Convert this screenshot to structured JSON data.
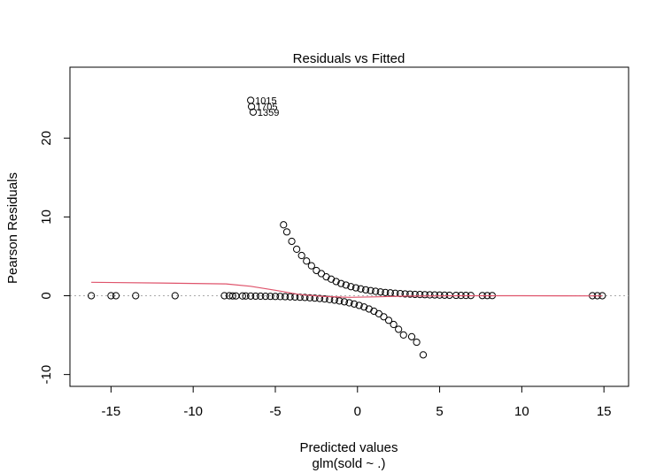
{
  "chart_data": {
    "type": "scatter",
    "title": "Residuals vs Fitted",
    "xlabel": "Predicted values",
    "xlabel_sub": "glm(sold ~ .)",
    "ylabel": "Pearson Residuals",
    "xlim": [
      -17.5,
      16.5
    ],
    "ylim": [
      -11.5,
      29.0
    ],
    "xticks": [
      -15,
      -10,
      -5,
      0,
      5,
      10,
      15
    ],
    "yticks": [
      -10,
      0,
      10,
      20
    ],
    "grid": false,
    "reference_line": {
      "y": 0,
      "style": "dotted",
      "color": "#aaaaaa"
    },
    "colors": {
      "points": "#000000",
      "smoother": "#df536b"
    },
    "labeled_points": [
      {
        "label": "1015",
        "x": -6.5,
        "y": 24.8
      },
      {
        "label": "1705",
        "x": -6.45,
        "y": 24.0
      },
      {
        "label": "1359",
        "x": -6.35,
        "y": 23.3
      }
    ],
    "points": [
      [
        -16.2,
        0
      ],
      [
        -15.0,
        0
      ],
      [
        -14.7,
        0
      ],
      [
        -13.5,
        0
      ],
      [
        -11.1,
        0
      ],
      [
        -8.1,
        0
      ],
      [
        -7.8,
        0
      ],
      [
        -7.6,
        -0.02
      ],
      [
        -7.4,
        -0.02
      ],
      [
        -7.0,
        -0.03
      ],
      [
        -6.8,
        -0.03
      ],
      [
        -6.5,
        -0.04
      ],
      [
        -6.2,
        -0.05
      ],
      [
        -5.9,
        -0.06
      ],
      [
        -5.6,
        -0.07
      ],
      [
        -5.3,
        -0.08
      ],
      [
        -5.0,
        -0.09
      ],
      [
        -4.7,
        -0.1
      ],
      [
        -4.4,
        -0.12
      ],
      [
        -4.1,
        -0.14
      ],
      [
        -3.8,
        -0.16
      ],
      [
        -3.5,
        -0.19
      ],
      [
        -3.2,
        -0.22
      ],
      [
        -2.9,
        -0.26
      ],
      [
        -2.6,
        -0.3
      ],
      [
        -2.3,
        -0.35
      ],
      [
        -2.0,
        -0.41
      ],
      [
        -1.7,
        -0.48
      ],
      [
        -1.4,
        -0.56
      ],
      [
        -1.1,
        -0.66
      ],
      [
        -0.8,
        -0.77
      ],
      [
        -0.5,
        -0.9
      ],
      [
        -0.2,
        -1.05
      ],
      [
        0.1,
        -1.23
      ],
      [
        0.4,
        -1.43
      ],
      [
        0.7,
        -1.68
      ],
      [
        1.0,
        -1.96
      ],
      [
        1.3,
        -2.29
      ],
      [
        1.6,
        -2.67
      ],
      [
        1.9,
        -3.12
      ],
      [
        2.2,
        -3.65
      ],
      [
        2.5,
        -4.26
      ],
      [
        2.8,
        -4.98
      ],
      [
        3.3,
        -5.2
      ],
      [
        3.6,
        -5.9
      ],
      [
        4.0,
        -7.5
      ],
      [
        -4.5,
        9.0
      ],
      [
        -4.3,
        8.1
      ],
      [
        -4.0,
        6.9
      ],
      [
        -3.7,
        5.9
      ],
      [
        -3.4,
        5.1
      ],
      [
        -3.1,
        4.4
      ],
      [
        -2.8,
        3.8
      ],
      [
        -2.5,
        3.2
      ],
      [
        -2.2,
        2.8
      ],
      [
        -1.9,
        2.4
      ],
      [
        -1.6,
        2.1
      ],
      [
        -1.3,
        1.8
      ],
      [
        -1.0,
        1.55
      ],
      [
        -0.7,
        1.35
      ],
      [
        -0.4,
        1.15
      ],
      [
        -0.1,
        1.0
      ],
      [
        0.2,
        0.87
      ],
      [
        0.5,
        0.75
      ],
      [
        0.8,
        0.65
      ],
      [
        1.1,
        0.56
      ],
      [
        1.4,
        0.48
      ],
      [
        1.7,
        0.41
      ],
      [
        2.0,
        0.36
      ],
      [
        2.3,
        0.31
      ],
      [
        2.6,
        0.27
      ],
      [
        2.9,
        0.23
      ],
      [
        3.2,
        0.2
      ],
      [
        3.5,
        0.17
      ],
      [
        3.8,
        0.15
      ],
      [
        4.1,
        0.13
      ],
      [
        4.4,
        0.11
      ],
      [
        4.7,
        0.1
      ],
      [
        5.0,
        0.08
      ],
      [
        5.3,
        0.07
      ],
      [
        5.6,
        0.06
      ],
      [
        6.0,
        0.05
      ],
      [
        6.3,
        0.04
      ],
      [
        6.6,
        0.04
      ],
      [
        6.9,
        0.03
      ],
      [
        7.6,
        0.02
      ],
      [
        7.9,
        0.02
      ],
      [
        8.2,
        0.02
      ],
      [
        14.3,
        0
      ],
      [
        14.6,
        0
      ],
      [
        14.9,
        0
      ]
    ],
    "smoother": [
      [
        -16.2,
        1.7
      ],
      [
        -12.0,
        1.62
      ],
      [
        -8.0,
        1.5
      ],
      [
        -6.5,
        1.2
      ],
      [
        -5.0,
        0.7
      ],
      [
        -3.5,
        0.15
      ],
      [
        -2.0,
        -0.1
      ],
      [
        -0.5,
        -0.2
      ],
      [
        1.0,
        -0.15
      ],
      [
        3.0,
        -0.05
      ],
      [
        6.0,
        0.0
      ],
      [
        10.0,
        0.0
      ],
      [
        14.9,
        -0.02
      ]
    ]
  }
}
